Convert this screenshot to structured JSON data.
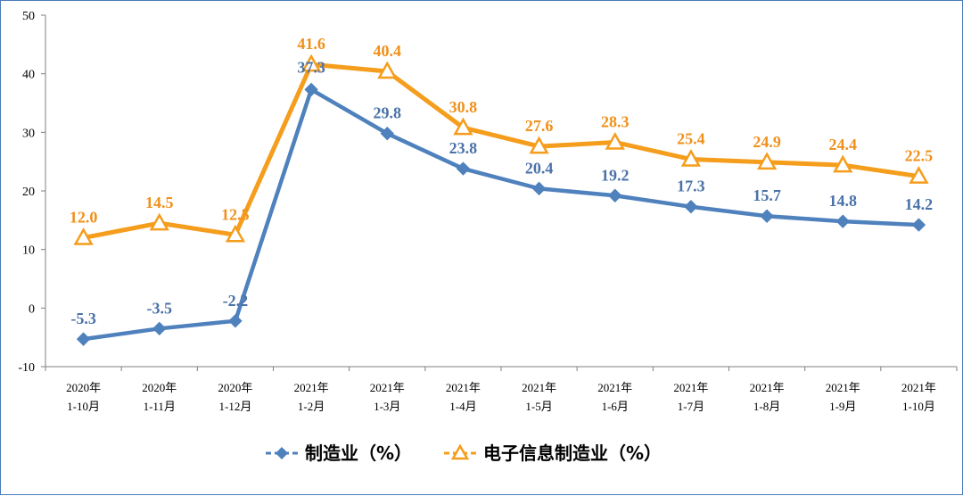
{
  "chart_data": {
    "type": "line",
    "categories": [
      [
        "2020年",
        "1-10月"
      ],
      [
        "2020年",
        "1-11月"
      ],
      [
        "2020年",
        "1-12月"
      ],
      [
        "2021年",
        "1-2月"
      ],
      [
        "2021年",
        "1-3月"
      ],
      [
        "2021年",
        "1-4月"
      ],
      [
        "2021年",
        "1-5月"
      ],
      [
        "2021年",
        "1-6月"
      ],
      [
        "2021年",
        "1-7月"
      ],
      [
        "2021年",
        "1-8月"
      ],
      [
        "2021年",
        "1-9月"
      ],
      [
        "2021年",
        "1-10月"
      ]
    ],
    "series": [
      {
        "name": "制造业（%）",
        "color": "#4f81bd",
        "label_color": "#4a72a8",
        "marker": "diamond",
        "values": [
          -5.3,
          -3.5,
          -2.2,
          37.3,
          29.8,
          23.8,
          20.4,
          19.2,
          17.3,
          15.7,
          14.8,
          14.2
        ],
        "labels": [
          "-5.3",
          "-3.5",
          "-2.2",
          "37.3",
          "29.8",
          "23.8",
          "20.4",
          "19.2",
          "17.3",
          "15.7",
          "14.8",
          "14.2"
        ]
      },
      {
        "name": "电子信息制造业（%）",
        "color": "#f59d1c",
        "label_color": "#f0901a",
        "marker": "triangle",
        "values": [
          12.0,
          14.5,
          12.5,
          41.6,
          40.4,
          30.8,
          27.6,
          28.3,
          25.4,
          24.9,
          24.4,
          22.5
        ],
        "labels": [
          "12.0",
          "14.5",
          "12.5",
          "41.6",
          "40.4",
          "30.8",
          "27.6",
          "28.3",
          "25.4",
          "24.9",
          "24.4",
          "22.5"
        ]
      }
    ],
    "ylim": [
      -10,
      50
    ],
    "yticks": [
      -10,
      0,
      10,
      20,
      30,
      40,
      50
    ],
    "grid": false,
    "legend_position": "bottom"
  }
}
